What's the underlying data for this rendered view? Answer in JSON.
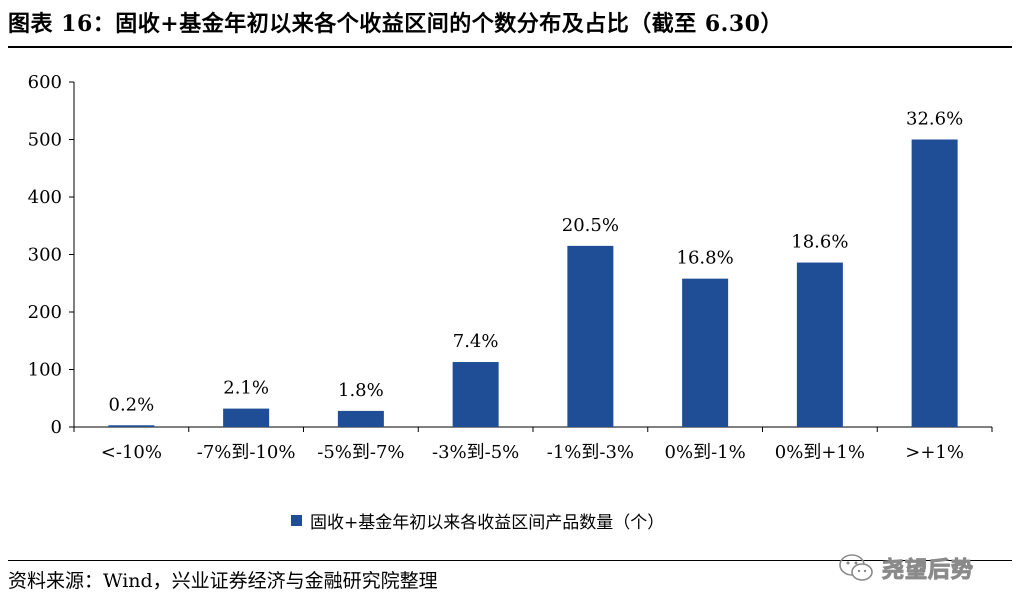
{
  "title": "图表 16：固收+基金年初以来各个收益区间的个数分布及占比（截至 6.30）",
  "source": "资料来源：Wind，兴业证券经济与金融研究院整理",
  "watermark": "尧望后势",
  "chart_data": {
    "type": "bar",
    "categories": [
      "<-10%",
      "-7%到-10%",
      "-5%到-7%",
      "-3%到-5%",
      "-1%到-3%",
      "0%到-1%",
      "0%到+1%",
      ">+1%"
    ],
    "series": [
      {
        "name": "固收+基金年初以来各收益区间产品数量（个）",
        "values": [
          3,
          32,
          28,
          113,
          315,
          258,
          286,
          500
        ],
        "data_labels": [
          "0.2%",
          "2.1%",
          "1.8%",
          "7.4%",
          "20.5%",
          "16.8%",
          "18.6%",
          "32.6%"
        ],
        "color": "#1f4e96"
      }
    ],
    "yticks": [
      0,
      100,
      200,
      300,
      400,
      500,
      600
    ],
    "ylim": [
      0,
      600
    ],
    "xlabel": "",
    "ylabel": "",
    "grid": false,
    "legend_position": "bottom-center"
  }
}
